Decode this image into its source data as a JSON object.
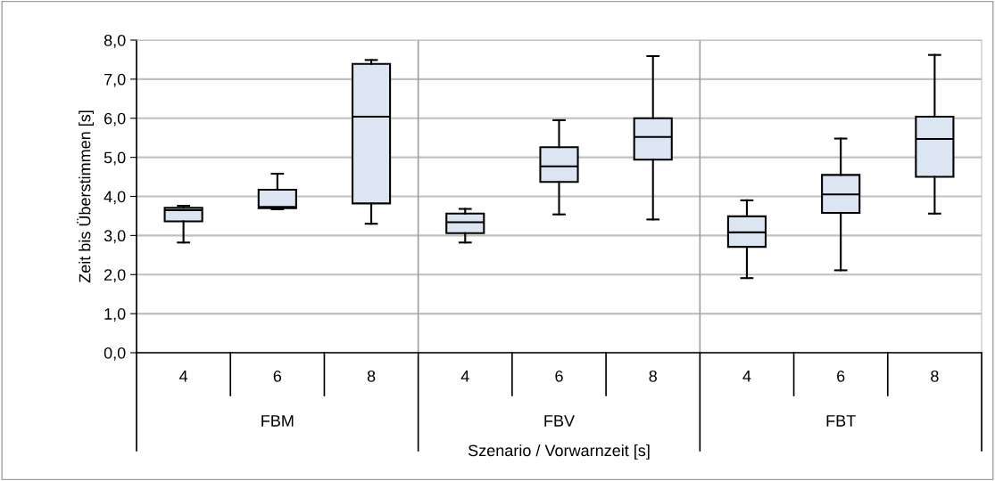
{
  "chart_data": {
    "type": "box",
    "ylabel": "Zeit bis Überstimmen [s]",
    "xlabel": "Szenario / Vorwarnzeit [s]",
    "categories": [
      "4",
      "6",
      "8",
      "4",
      "6",
      "8",
      "4",
      "6",
      "8"
    ],
    "annotations": [
      "FBM",
      "FBV",
      "FBT"
    ],
    "color": "#dce6f2",
    "boxes": [
      {
        "low": 2.82,
        "q1": 3.36,
        "median": 3.65,
        "q3": 3.71,
        "high": 3.76
      },
      {
        "low": 3.67,
        "q1": 3.7,
        "median": 3.73,
        "q3": 4.17,
        "high": 4.58
      },
      {
        "low": 3.3,
        "q1": 3.82,
        "median": 6.04,
        "q3": 7.39,
        "high": 7.49
      },
      {
        "low": 2.82,
        "q1": 3.06,
        "median": 3.34,
        "q3": 3.56,
        "high": 3.68
      },
      {
        "low": 3.54,
        "q1": 4.37,
        "median": 4.77,
        "q3": 5.26,
        "high": 5.95
      },
      {
        "low": 3.41,
        "q1": 4.94,
        "median": 5.52,
        "q3": 6.0,
        "high": 7.59
      },
      {
        "low": 1.91,
        "q1": 2.71,
        "median": 3.08,
        "q3": 3.49,
        "high": 3.9
      },
      {
        "low": 2.11,
        "q1": 3.58,
        "median": 4.05,
        "q3": 4.55,
        "high": 5.48
      },
      {
        "low": 3.56,
        "q1": 4.5,
        "median": 5.47,
        "q3": 6.04,
        "high": 7.62
      }
    ],
    "ylim": [
      0,
      8
    ],
    "yticks": [
      {
        "value": 0,
        "label": "0,0"
      },
      {
        "value": 1,
        "label": "1,0"
      },
      {
        "value": 2,
        "label": "2,0"
      },
      {
        "value": 3,
        "label": "3,0"
      },
      {
        "value": 4,
        "label": "4,0"
      },
      {
        "value": 5,
        "label": "5,0"
      },
      {
        "value": 6,
        "label": "6,0"
      },
      {
        "value": 7,
        "label": "7,0"
      },
      {
        "value": 8,
        "label": "8,0"
      }
    ],
    "grid": "y",
    "legend": false
  }
}
